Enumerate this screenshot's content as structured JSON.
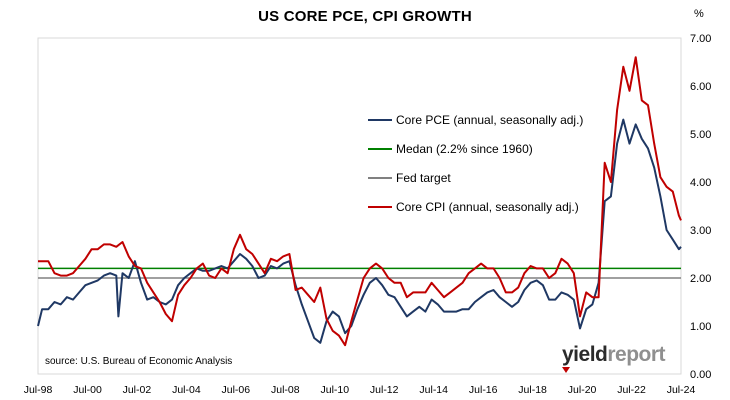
{
  "chart_data": {
    "type": "line",
    "title": "US CORE PCE, CPI GROWTH",
    "unit": "%",
    "source": "source: U.S. Bureau of Economic Analysis",
    "brand": {
      "part1": "yield",
      "part2": "report"
    },
    "x_tick_labels": [
      "Jul-98",
      "Jul-00",
      "Jul-02",
      "Jul-04",
      "Jul-06",
      "Jul-08",
      "Jul-10",
      "Jul-12",
      "Jul-14",
      "Jul-16",
      "Jul-18",
      "Jul-20",
      "Jul-22",
      "Jul-24"
    ],
    "xlim": [
      "1998-07",
      "2024-07"
    ],
    "ylim": [
      0,
      7
    ],
    "y_tick_labels": [
      "0.00",
      "1.00",
      "2.00",
      "3.00",
      "4.00",
      "5.00",
      "6.00",
      "7.00"
    ],
    "y_axis_position": "right",
    "legend_position": "center-right",
    "series": [
      {
        "name": "Core PCE (annual, seasonally adj.)",
        "color": "#1f3864",
        "points": [
          [
            "1998-07",
            1.0
          ],
          [
            "1998-09",
            1.35
          ],
          [
            "1998-12",
            1.35
          ],
          [
            "1999-03",
            1.5
          ],
          [
            "1999-06",
            1.45
          ],
          [
            "1999-09",
            1.6
          ],
          [
            "1999-12",
            1.55
          ],
          [
            "2000-03",
            1.7
          ],
          [
            "2000-06",
            1.85
          ],
          [
            "2000-09",
            1.9
          ],
          [
            "2000-12",
            1.95
          ],
          [
            "2001-03",
            2.05
          ],
          [
            "2001-06",
            2.1
          ],
          [
            "2001-09",
            2.05
          ],
          [
            "2001-10",
            1.2
          ],
          [
            "2001-12",
            2.1
          ],
          [
            "2002-03",
            2.0
          ],
          [
            "2002-06",
            2.35
          ],
          [
            "2002-09",
            1.9
          ],
          [
            "2002-12",
            1.55
          ],
          [
            "2003-03",
            1.6
          ],
          [
            "2003-06",
            1.5
          ],
          [
            "2003-09",
            1.45
          ],
          [
            "2003-12",
            1.55
          ],
          [
            "2004-03",
            1.85
          ],
          [
            "2004-06",
            2.0
          ],
          [
            "2004-09",
            2.1
          ],
          [
            "2004-12",
            2.2
          ],
          [
            "2005-03",
            2.15
          ],
          [
            "2005-06",
            2.15
          ],
          [
            "2005-09",
            2.2
          ],
          [
            "2005-12",
            2.25
          ],
          [
            "2006-03",
            2.2
          ],
          [
            "2006-06",
            2.35
          ],
          [
            "2006-09",
            2.5
          ],
          [
            "2006-12",
            2.4
          ],
          [
            "2007-03",
            2.25
          ],
          [
            "2007-06",
            2.0
          ],
          [
            "2007-09",
            2.05
          ],
          [
            "2007-12",
            2.25
          ],
          [
            "2008-03",
            2.2
          ],
          [
            "2008-06",
            2.3
          ],
          [
            "2008-09",
            2.35
          ],
          [
            "2008-12",
            1.85
          ],
          [
            "2009-03",
            1.45
          ],
          [
            "2009-06",
            1.1
          ],
          [
            "2009-09",
            0.75
          ],
          [
            "2009-12",
            0.65
          ],
          [
            "2010-03",
            1.1
          ],
          [
            "2010-06",
            1.3
          ],
          [
            "2010-09",
            1.2
          ],
          [
            "2010-12",
            0.85
          ],
          [
            "2011-03",
            1.0
          ],
          [
            "2011-06",
            1.35
          ],
          [
            "2011-09",
            1.65
          ],
          [
            "2011-12",
            1.9
          ],
          [
            "2012-03",
            2.0
          ],
          [
            "2012-06",
            1.85
          ],
          [
            "2012-09",
            1.65
          ],
          [
            "2012-12",
            1.6
          ],
          [
            "2013-03",
            1.4
          ],
          [
            "2013-06",
            1.2
          ],
          [
            "2013-09",
            1.3
          ],
          [
            "2013-12",
            1.4
          ],
          [
            "2014-03",
            1.3
          ],
          [
            "2014-06",
            1.55
          ],
          [
            "2014-09",
            1.45
          ],
          [
            "2014-12",
            1.3
          ],
          [
            "2015-03",
            1.3
          ],
          [
            "2015-06",
            1.3
          ],
          [
            "2015-09",
            1.35
          ],
          [
            "2015-12",
            1.35
          ],
          [
            "2016-03",
            1.5
          ],
          [
            "2016-06",
            1.6
          ],
          [
            "2016-09",
            1.7
          ],
          [
            "2016-12",
            1.75
          ],
          [
            "2017-03",
            1.6
          ],
          [
            "2017-06",
            1.5
          ],
          [
            "2017-09",
            1.4
          ],
          [
            "2017-12",
            1.5
          ],
          [
            "2018-03",
            1.75
          ],
          [
            "2018-06",
            1.9
          ],
          [
            "2018-09",
            1.95
          ],
          [
            "2018-12",
            1.85
          ],
          [
            "2019-03",
            1.55
          ],
          [
            "2019-06",
            1.55
          ],
          [
            "2019-09",
            1.7
          ],
          [
            "2019-12",
            1.65
          ],
          [
            "2020-03",
            1.55
          ],
          [
            "2020-06",
            0.95
          ],
          [
            "2020-09",
            1.35
          ],
          [
            "2020-12",
            1.45
          ],
          [
            "2021-03",
            1.9
          ],
          [
            "2021-06",
            3.6
          ],
          [
            "2021-09",
            3.7
          ],
          [
            "2021-12",
            4.8
          ],
          [
            "2022-03",
            5.3
          ],
          [
            "2022-06",
            4.8
          ],
          [
            "2022-09",
            5.2
          ],
          [
            "2022-12",
            4.9
          ],
          [
            "2023-03",
            4.7
          ],
          [
            "2023-06",
            4.3
          ],
          [
            "2023-09",
            3.7
          ],
          [
            "2023-12",
            3.0
          ],
          [
            "2024-03",
            2.8
          ],
          [
            "2024-06",
            2.6
          ],
          [
            "2024-07",
            2.65
          ]
        ]
      },
      {
        "name": "Medan (2.2% since 1960)",
        "color": "#008000",
        "points": [
          [
            "1998-07",
            2.2
          ],
          [
            "2024-07",
            2.2
          ]
        ]
      },
      {
        "name": "Fed target",
        "color": "#808080",
        "points": [
          [
            "1998-07",
            2.0
          ],
          [
            "2024-07",
            2.0
          ]
        ]
      },
      {
        "name": "Core CPI (annual, seasonally adj.)",
        "color": "#c00000",
        "points": [
          [
            "1998-07",
            2.35
          ],
          [
            "1998-12",
            2.35
          ],
          [
            "1999-03",
            2.1
          ],
          [
            "1999-06",
            2.05
          ],
          [
            "1999-09",
            2.05
          ],
          [
            "1999-12",
            2.1
          ],
          [
            "2000-03",
            2.25
          ],
          [
            "2000-06",
            2.4
          ],
          [
            "2000-09",
            2.6
          ],
          [
            "2000-12",
            2.6
          ],
          [
            "2001-03",
            2.7
          ],
          [
            "2001-06",
            2.7
          ],
          [
            "2001-09",
            2.65
          ],
          [
            "2001-12",
            2.75
          ],
          [
            "2002-03",
            2.45
          ],
          [
            "2002-06",
            2.25
          ],
          [
            "2002-09",
            2.2
          ],
          [
            "2002-12",
            1.9
          ],
          [
            "2003-03",
            1.7
          ],
          [
            "2003-06",
            1.5
          ],
          [
            "2003-09",
            1.25
          ],
          [
            "2003-12",
            1.1
          ],
          [
            "2004-03",
            1.65
          ],
          [
            "2004-06",
            1.85
          ],
          [
            "2004-09",
            2.0
          ],
          [
            "2004-12",
            2.2
          ],
          [
            "2005-03",
            2.3
          ],
          [
            "2005-06",
            2.05
          ],
          [
            "2005-09",
            2.0
          ],
          [
            "2005-12",
            2.2
          ],
          [
            "2006-03",
            2.1
          ],
          [
            "2006-06",
            2.6
          ],
          [
            "2006-09",
            2.9
          ],
          [
            "2006-12",
            2.6
          ],
          [
            "2007-03",
            2.5
          ],
          [
            "2007-06",
            2.3
          ],
          [
            "2007-09",
            2.1
          ],
          [
            "2007-12",
            2.4
          ],
          [
            "2008-03",
            2.35
          ],
          [
            "2008-06",
            2.45
          ],
          [
            "2008-09",
            2.5
          ],
          [
            "2008-12",
            1.75
          ],
          [
            "2009-03",
            1.8
          ],
          [
            "2009-06",
            1.65
          ],
          [
            "2009-09",
            1.5
          ],
          [
            "2009-12",
            1.8
          ],
          [
            "2010-03",
            1.15
          ],
          [
            "2010-06",
            0.9
          ],
          [
            "2010-09",
            0.8
          ],
          [
            "2010-12",
            0.6
          ],
          [
            "2011-03",
            1.1
          ],
          [
            "2011-06",
            1.55
          ],
          [
            "2011-09",
            2.0
          ],
          [
            "2011-12",
            2.2
          ],
          [
            "2012-03",
            2.3
          ],
          [
            "2012-06",
            2.2
          ],
          [
            "2012-09",
            2.0
          ],
          [
            "2012-12",
            1.9
          ],
          [
            "2013-03",
            1.9
          ],
          [
            "2013-06",
            1.6
          ],
          [
            "2013-09",
            1.7
          ],
          [
            "2013-12",
            1.7
          ],
          [
            "2014-03",
            1.7
          ],
          [
            "2014-06",
            1.9
          ],
          [
            "2014-09",
            1.75
          ],
          [
            "2014-12",
            1.6
          ],
          [
            "2015-03",
            1.7
          ],
          [
            "2015-06",
            1.8
          ],
          [
            "2015-09",
            1.9
          ],
          [
            "2015-12",
            2.1
          ],
          [
            "2016-03",
            2.2
          ],
          [
            "2016-06",
            2.3
          ],
          [
            "2016-09",
            2.2
          ],
          [
            "2016-12",
            2.2
          ],
          [
            "2017-03",
            2.0
          ],
          [
            "2017-06",
            1.7
          ],
          [
            "2017-09",
            1.7
          ],
          [
            "2017-12",
            1.8
          ],
          [
            "2018-03",
            2.1
          ],
          [
            "2018-06",
            2.25
          ],
          [
            "2018-09",
            2.2
          ],
          [
            "2018-12",
            2.2
          ],
          [
            "2019-03",
            2.0
          ],
          [
            "2019-06",
            2.1
          ],
          [
            "2019-09",
            2.4
          ],
          [
            "2019-12",
            2.3
          ],
          [
            "2020-03",
            2.1
          ],
          [
            "2020-06",
            1.2
          ],
          [
            "2020-09",
            1.7
          ],
          [
            "2020-12",
            1.6
          ],
          [
            "2021-03",
            1.6
          ],
          [
            "2021-06",
            4.4
          ],
          [
            "2021-09",
            4.0
          ],
          [
            "2021-12",
            5.5
          ],
          [
            "2022-03",
            6.4
          ],
          [
            "2022-06",
            5.9
          ],
          [
            "2022-09",
            6.6
          ],
          [
            "2022-12",
            5.7
          ],
          [
            "2023-03",
            5.6
          ],
          [
            "2023-06",
            4.8
          ],
          [
            "2023-09",
            4.1
          ],
          [
            "2023-12",
            3.9
          ],
          [
            "2024-03",
            3.8
          ],
          [
            "2024-06",
            3.3
          ],
          [
            "2024-07",
            3.2
          ]
        ]
      }
    ]
  }
}
